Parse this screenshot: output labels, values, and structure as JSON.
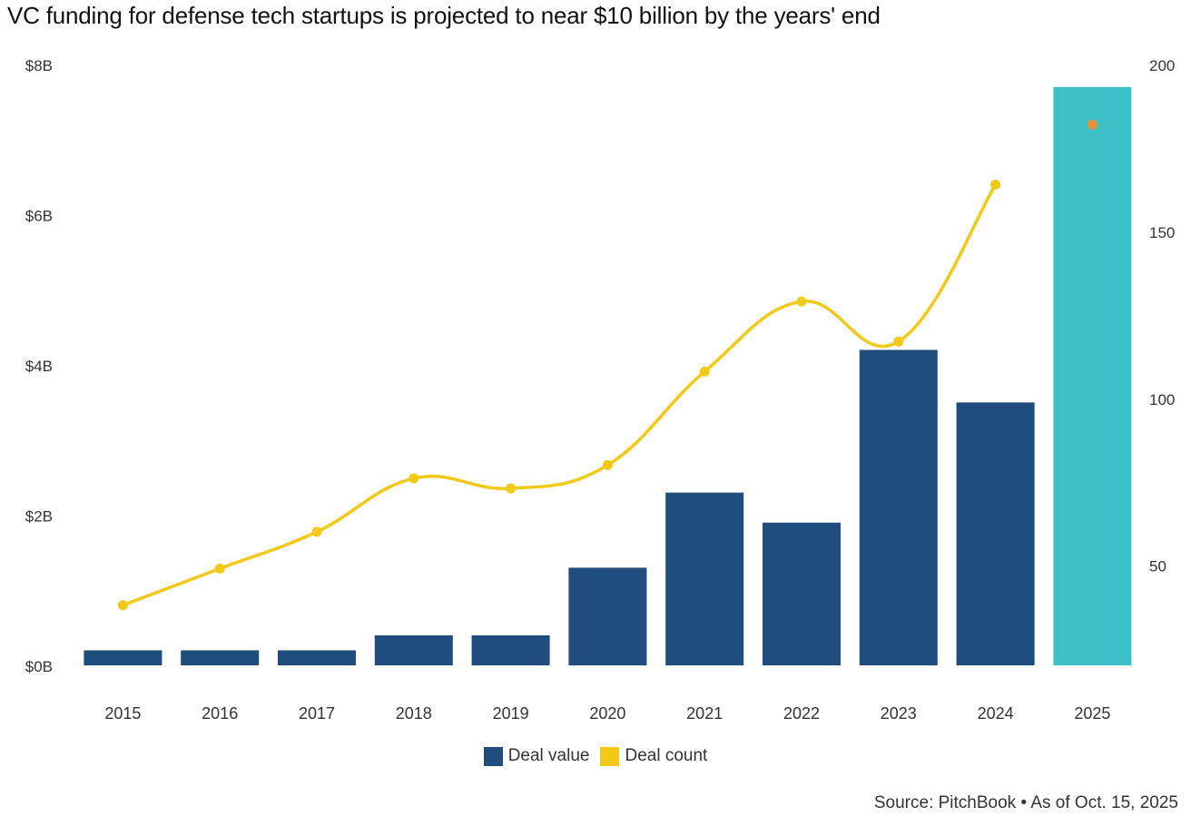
{
  "title": "VC funding for defense tech startups is projected to near $10 billion by the years' end",
  "source": "Source: PitchBook • As of Oct. 15, 2025",
  "colors": {
    "deal_value": "#1f4e7e",
    "deal_value_projected": "#3ec1c6",
    "deal_count": "#f2c919",
    "deal_count_projected": "#e8903a",
    "axis_text": "#333333"
  },
  "legend": {
    "deal_value": "Deal value",
    "deal_count": "Deal count"
  },
  "chart_data": {
    "type": "bar",
    "categories": [
      "2015",
      "2016",
      "2017",
      "2018",
      "2019",
      "2020",
      "2021",
      "2022",
      "2023",
      "2024",
      "2025"
    ],
    "projected_category": "2025",
    "left_axis": {
      "ylim": [
        0,
        8
      ],
      "ticks": [
        0,
        2,
        4,
        6,
        8
      ],
      "tick_labels": [
        "$0B",
        "$2B",
        "$4B",
        "$6B",
        "$8B"
      ]
    },
    "right_axis": {
      "ylim": [
        20,
        200
      ],
      "ticks": [
        50,
        100,
        150,
        200
      ],
      "tick_labels": [
        "50",
        "100",
        "150",
        "200"
      ]
    },
    "series": [
      {
        "name": "Deal value",
        "type": "bar",
        "axis": "left",
        "values": [
          0.2,
          0.2,
          0.2,
          0.4,
          0.4,
          1.3,
          2.3,
          1.9,
          4.2,
          3.5,
          7.7
        ]
      },
      {
        "name": "Deal count",
        "type": "line",
        "axis": "right",
        "values": [
          38,
          49,
          60,
          76,
          73,
          80,
          108,
          129,
          117,
          164,
          182
        ]
      }
    ],
    "grid": false,
    "legend_position": "bottom-center"
  }
}
